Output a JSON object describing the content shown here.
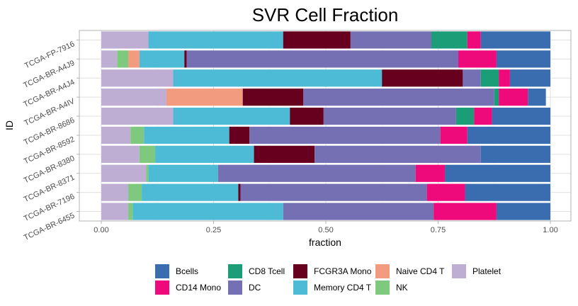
{
  "chart_data": {
    "type": "bar",
    "orientation": "horizontal",
    "stacked": true,
    "title": "SVR Cell Fraction",
    "xlabel": "fraction",
    "ylabel": "ID",
    "xlim": [
      0,
      1
    ],
    "xticks": [
      "0.00",
      "0.25",
      "0.50",
      "0.75",
      "1.00"
    ],
    "grid": true,
    "legend_position": "bottom",
    "categories": [
      "TCGA-FP-7916",
      "TCGA-BR-A4J9",
      "TCGA-BR-A4J4",
      "TCGA-BR-A4IV",
      "TCGA-BR-8686",
      "TCGA-BR-8592",
      "TCGA-BR-8380",
      "TCGA-BR-8371",
      "TCGA-BR-7196",
      "TCGA-BR-6455"
    ],
    "stack_order": [
      "Platelet",
      "NK",
      "Naive CD4 T",
      "Memory CD4 T",
      "FCGR3A Mono",
      "DC",
      "CD8 Tcell",
      "CD14 Mono",
      "Bcells"
    ],
    "series": [
      {
        "name": "Bcells",
        "color": "#3A6DB0",
        "values": [
          0.155,
          0.12,
          0.09,
          0.04,
          0.13,
          0.185,
          0.155,
          0.235,
          0.19,
          0.12
        ]
      },
      {
        "name": "CD14 Mono",
        "color": "#EE0A7A",
        "values": [
          0.03,
          0.085,
          0.025,
          0.065,
          0.04,
          0.06,
          0.0,
          0.065,
          0.085,
          0.14
        ]
      },
      {
        "name": "CD8 Tcell",
        "color": "#1B9E77",
        "values": [
          0.08,
          0.0,
          0.04,
          0.01,
          0.04,
          0.0,
          0.0,
          0.0,
          0.0,
          0.0
        ]
      },
      {
        "name": "DC",
        "color": "#7570B3",
        "values": [
          0.18,
          0.605,
          0.04,
          0.425,
          0.295,
          0.425,
          0.37,
          0.44,
          0.415,
          0.335
        ]
      },
      {
        "name": "FCGR3A Mono",
        "color": "#67001F",
        "values": [
          0.15,
          0.005,
          0.18,
          0.135,
          0.075,
          0.045,
          0.135,
          0.0,
          0.005,
          0.0
        ]
      },
      {
        "name": "Memory CD4 T",
        "color": "#4DBBD5",
        "values": [
          0.3,
          0.1,
          0.465,
          0.0,
          0.26,
          0.19,
          0.22,
          0.155,
          0.215,
          0.335
        ]
      },
      {
        "name": "Naive CD4 T",
        "color": "#F39B7F",
        "values": [
          0.0,
          0.025,
          0.0,
          0.17,
          0.0,
          0.0,
          0.0,
          0.0,
          0.0,
          0.0
        ]
      },
      {
        "name": "NK",
        "color": "#7FC97F",
        "values": [
          0.0,
          0.025,
          0.0,
          0.0,
          0.0,
          0.03,
          0.035,
          0.005,
          0.03,
          0.01
        ]
      },
      {
        "name": "Platelet",
        "color": "#BEAED4",
        "values": [
          0.105,
          0.035,
          0.16,
          0.145,
          0.16,
          0.065,
          0.085,
          0.1,
          0.06,
          0.06
        ]
      }
    ]
  }
}
